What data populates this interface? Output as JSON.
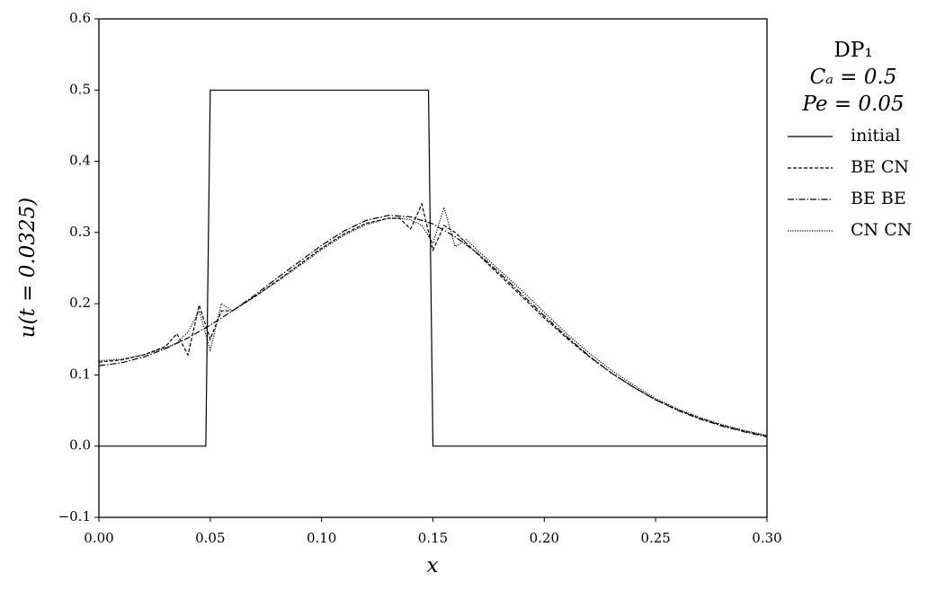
{
  "chart_data": {
    "type": "line",
    "legend_title": [
      "DP₁",
      "Cₐ = 0.5",
      "Pe = 0.05"
    ],
    "xlabel": "x",
    "ylabel": "u(t = 0.0325)",
    "xlim": [
      0,
      0.3
    ],
    "ylim": [
      -0.1,
      0.6
    ],
    "xticks": [
      {
        "value": 0,
        "label": "0.00"
      },
      0.05,
      {
        "value": 0.1,
        "label": "0.10"
      },
      0.15,
      {
        "value": 0.2,
        "label": "0.20"
      },
      0.25,
      {
        "value": 0.3,
        "label": "0.30"
      }
    ],
    "yticks": [
      {
        "value": -0.1,
        "label": "−0.1"
      },
      {
        "value": 0,
        "label": "0.0"
      },
      0.1,
      0.2,
      0.3,
      0.4,
      0.5,
      0.6
    ],
    "legend": "outside-right",
    "series": [
      {
        "name": "initial",
        "color": "#000000",
        "dash": "solid",
        "x": [
          0,
          0.048,
          0.05,
          0.148,
          0.15,
          0.3
        ],
        "values": [
          0,
          0,
          0.5,
          0.5,
          0,
          0
        ]
      },
      {
        "name": "BE CN",
        "color": "#000000",
        "dash": "dashed",
        "x": [
          0,
          0.01,
          0.02,
          0.03,
          0.035,
          0.04,
          0.045,
          0.05,
          0.055,
          0.06,
          0.07,
          0.08,
          0.09,
          0.1,
          0.11,
          0.12,
          0.13,
          0.135,
          0.14,
          0.145,
          0.15,
          0.155,
          0.16,
          0.17,
          0.18,
          0.19,
          0.2,
          0.21,
          0.22,
          0.23,
          0.24,
          0.25,
          0.26,
          0.27,
          0.28,
          0.29,
          0.3
        ],
        "values": [
          0.118,
          0.121,
          0.128,
          0.14,
          0.158,
          0.128,
          0.198,
          0.15,
          0.19,
          0.19,
          0.21,
          0.232,
          0.255,
          0.278,
          0.298,
          0.313,
          0.32,
          0.32,
          0.305,
          0.34,
          0.275,
          0.31,
          0.3,
          0.27,
          0.24,
          0.21,
          0.18,
          0.152,
          0.126,
          0.103,
          0.083,
          0.065,
          0.051,
          0.039,
          0.029,
          0.021,
          0.014
        ]
      },
      {
        "name": "BE BE",
        "color": "#000000",
        "dash": "dashdot",
        "x": [
          0,
          0.01,
          0.02,
          0.03,
          0.04,
          0.05,
          0.06,
          0.07,
          0.08,
          0.09,
          0.1,
          0.11,
          0.12,
          0.13,
          0.14,
          0.15,
          0.16,
          0.17,
          0.18,
          0.19,
          0.2,
          0.21,
          0.22,
          0.23,
          0.24,
          0.25,
          0.26,
          0.27,
          0.28,
          0.29,
          0.3
        ],
        "values": [
          0.113,
          0.117,
          0.125,
          0.137,
          0.152,
          0.17,
          0.19,
          0.212,
          0.236,
          0.259,
          0.282,
          0.302,
          0.317,
          0.324,
          0.322,
          0.312,
          0.294,
          0.271,
          0.243,
          0.213,
          0.183,
          0.154,
          0.127,
          0.103,
          0.083,
          0.065,
          0.05,
          0.038,
          0.028,
          0.02,
          0.013
        ]
      },
      {
        "name": "CN CN",
        "color": "#000000",
        "dash": "dotted",
        "x": [
          0,
          0.01,
          0.02,
          0.03,
          0.035,
          0.04,
          0.045,
          0.05,
          0.055,
          0.06,
          0.07,
          0.08,
          0.09,
          0.1,
          0.11,
          0.12,
          0.13,
          0.135,
          0.14,
          0.145,
          0.15,
          0.155,
          0.16,
          0.165,
          0.17,
          0.18,
          0.19,
          0.2,
          0.21,
          0.22,
          0.23,
          0.24,
          0.25,
          0.26,
          0.27,
          0.28,
          0.29,
          0.3
        ],
        "values": [
          0.12,
          0.122,
          0.128,
          0.138,
          0.145,
          0.16,
          0.19,
          0.135,
          0.2,
          0.19,
          0.21,
          0.231,
          0.253,
          0.276,
          0.296,
          0.311,
          0.32,
          0.32,
          0.318,
          0.31,
          0.285,
          0.335,
          0.28,
          0.29,
          0.275,
          0.247,
          0.218,
          0.188,
          0.158,
          0.131,
          0.107,
          0.086,
          0.067,
          0.052,
          0.04,
          0.03,
          0.022,
          0.015
        ]
      }
    ]
  }
}
